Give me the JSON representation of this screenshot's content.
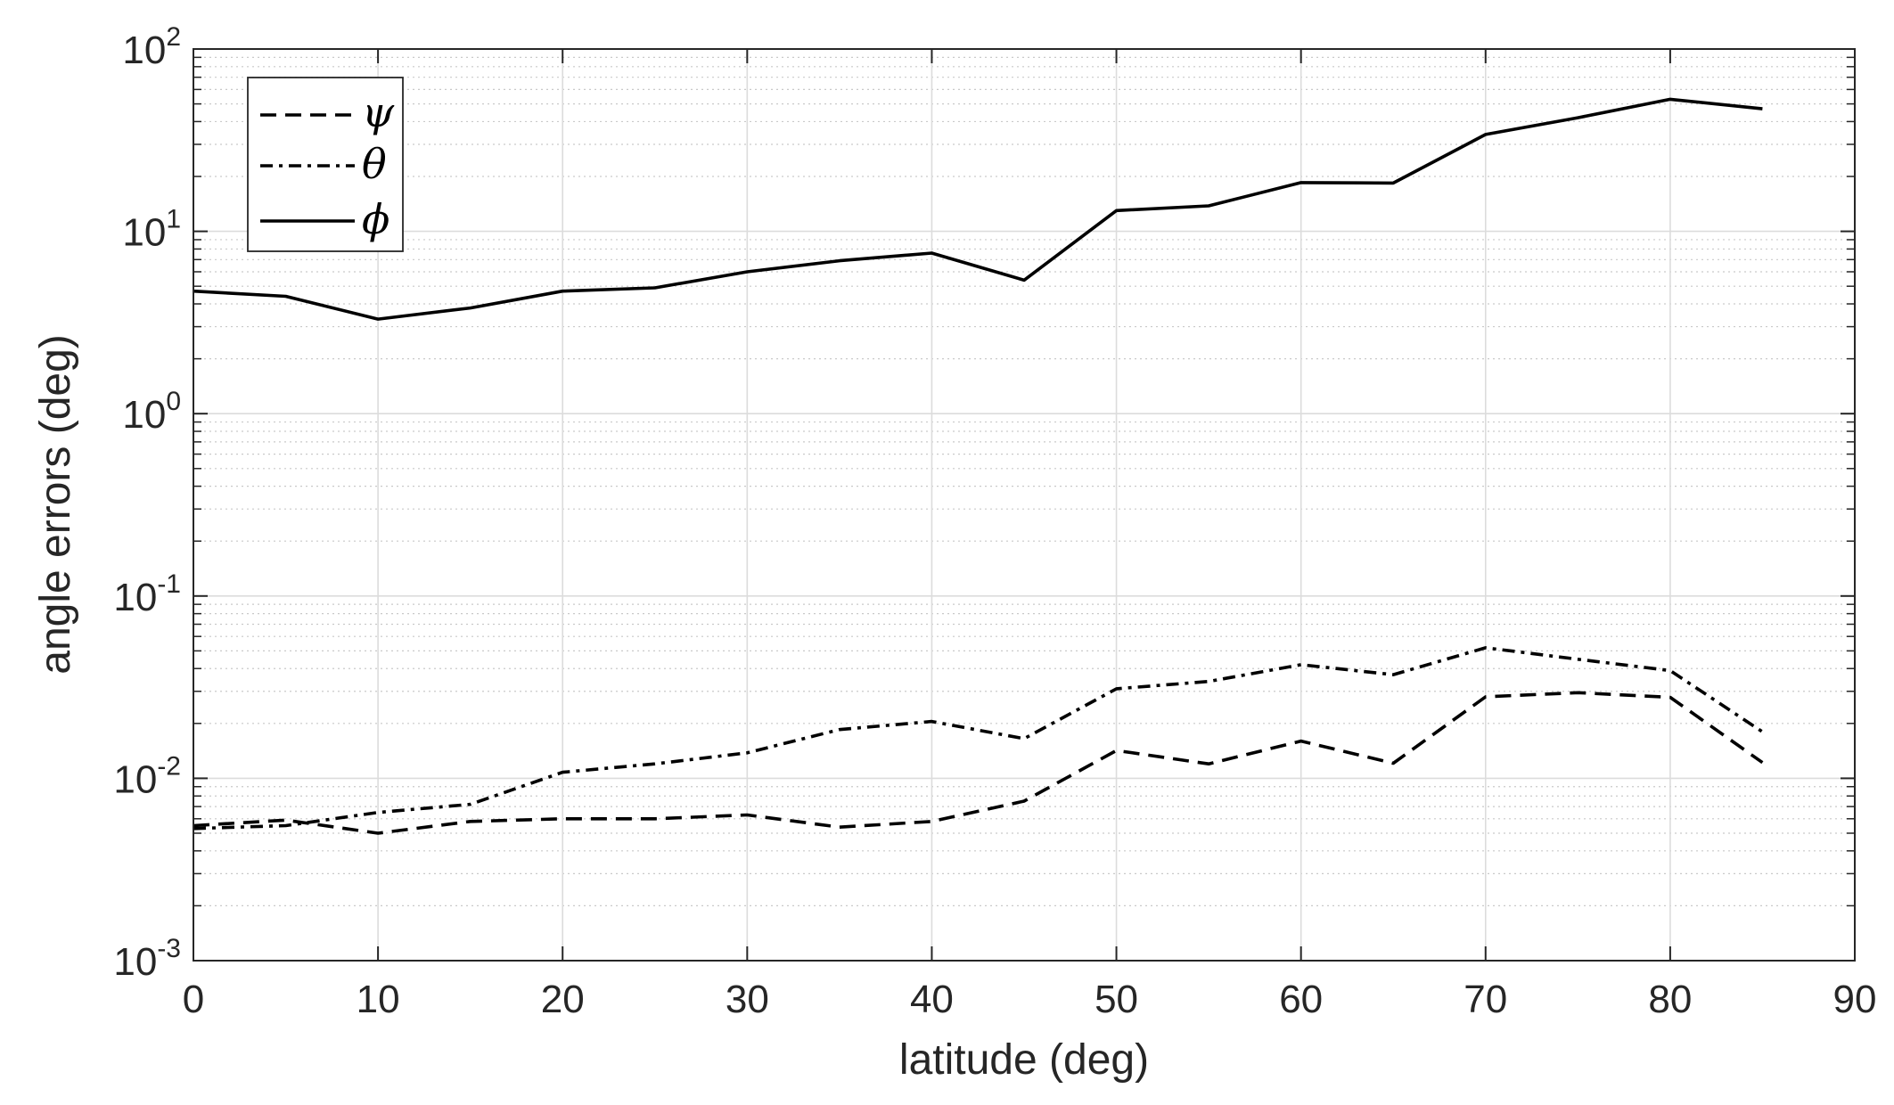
{
  "chart_data": {
    "type": "line",
    "title": "",
    "xlabel": "latitude (deg)",
    "ylabel": "angle errors (deg)",
    "xlim": [
      0,
      90
    ],
    "ylim": [
      0.001,
      100
    ],
    "yscale": "log",
    "grid": true,
    "minor_grid": true,
    "legend_position": "top-left",
    "x_ticks": [
      0,
      10,
      20,
      30,
      40,
      50,
      60,
      70,
      80,
      90
    ],
    "y_ticks": [
      {
        "base": "10",
        "exp": "2",
        "value": 100
      },
      {
        "base": "10",
        "exp": "1",
        "value": 10
      },
      {
        "base": "10",
        "exp": "0",
        "value": 1
      },
      {
        "base": "10",
        "exp": "-1",
        "value": 0.1
      },
      {
        "base": "10",
        "exp": "-2",
        "value": 0.01
      },
      {
        "base": "10",
        "exp": "-3",
        "value": 0.001
      }
    ],
    "x": [
      0,
      5,
      10,
      15,
      20,
      25,
      30,
      35,
      40,
      45,
      50,
      55,
      60,
      65,
      70,
      75,
      80,
      85
    ],
    "series": [
      {
        "name": "ψ",
        "style": "dashed",
        "color": "#000000",
        "values": [
          0.0055,
          0.0059,
          0.005,
          0.0058,
          0.006,
          0.006,
          0.0063,
          0.0054,
          0.0058,
          0.0075,
          0.0142,
          0.012,
          0.016,
          0.0121,
          0.028,
          0.0295,
          0.0278,
          0.0122
        ]
      },
      {
        "name": "θ",
        "style": "dashdot",
        "color": "#000000",
        "values": [
          0.0053,
          0.0055,
          0.0065,
          0.0072,
          0.0108,
          0.012,
          0.0138,
          0.0185,
          0.0205,
          0.0165,
          0.031,
          0.034,
          0.042,
          0.037,
          0.052,
          0.045,
          0.039,
          0.018
        ]
      },
      {
        "name": "ϕ",
        "style": "solid",
        "color": "#000000",
        "values": [
          4.7,
          4.4,
          3.3,
          3.8,
          4.7,
          4.9,
          6.0,
          6.9,
          7.6,
          5.4,
          13.0,
          13.8,
          18.5,
          18.4,
          34.0,
          42.0,
          53.0,
          47.0
        ]
      }
    ]
  }
}
